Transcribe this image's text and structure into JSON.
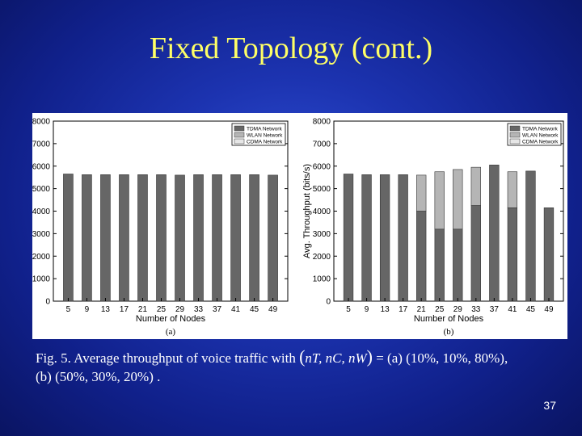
{
  "slide": {
    "title": "Fixed Topology (cont.)",
    "page_number": "37"
  },
  "caption": {
    "line1_prefix": "Fig. 5. Average throughput of voice traffic with",
    "math_n_t": "nT",
    "math_n_c": "nC",
    "math_n_w": "nW",
    "line1_suffix": "= (a) (10%, 10%, 80%),",
    "line2": "(b) (50%, 30%, 20%) ."
  },
  "colors": {
    "background": "#1c33b0",
    "title": "#ffff66",
    "tdma": "#666666",
    "wlan": "#b5b5b5",
    "cdma": "#e6e6e6"
  },
  "chart_data": [
    {
      "type": "bar",
      "stacked": true,
      "panel_label": "(a)",
      "xlabel": "Number of Nodes",
      "ylabel": "Avg. Throughput (bits/s)",
      "ylim": [
        0,
        8000
      ],
      "yticks": [
        0,
        1000,
        2000,
        3000,
        4000,
        5000,
        6000,
        7000,
        8000
      ],
      "categories": [
        "5",
        "9",
        "13",
        "17",
        "21",
        "25",
        "29",
        "33",
        "37",
        "41",
        "45",
        "49"
      ],
      "legend": {
        "placement": "top-right",
        "entries": [
          "TDMA Network",
          "WLAN Network",
          "CDMA Network"
        ]
      },
      "series": [
        {
          "name": "TDMA Network",
          "values": [
            5650,
            5620,
            5620,
            5620,
            5620,
            5620,
            5600,
            5620,
            5620,
            5620,
            5620,
            5600
          ]
        },
        {
          "name": "WLAN Network",
          "values": [
            0,
            0,
            0,
            0,
            0,
            0,
            0,
            0,
            0,
            0,
            0,
            0
          ]
        },
        {
          "name": "CDMA Network",
          "values": [
            0,
            0,
            0,
            0,
            0,
            0,
            0,
            0,
            0,
            0,
            0,
            0
          ]
        }
      ]
    },
    {
      "type": "bar",
      "stacked": true,
      "panel_label": "(b)",
      "xlabel": "Number of Nodes",
      "ylabel": "Avg. Throughput (bits/s)",
      "ylim": [
        0,
        8000
      ],
      "yticks": [
        0,
        1000,
        2000,
        3000,
        4000,
        5000,
        6000,
        7000,
        8000
      ],
      "categories": [
        "5",
        "9",
        "13",
        "17",
        "21",
        "25",
        "29",
        "33",
        "37",
        "41",
        "45",
        "49"
      ],
      "legend": {
        "placement": "top-right",
        "entries": [
          "TDMA Network",
          "WLAN Network",
          "CDMA Network"
        ]
      },
      "series": [
        {
          "name": "TDMA Network",
          "values": [
            5650,
            5620,
            5620,
            5620,
            4000,
            3200,
            3200,
            4250,
            6050,
            4150,
            5780,
            4150
          ]
        },
        {
          "name": "WLAN Network",
          "values": [
            0,
            0,
            0,
            0,
            1600,
            2550,
            2650,
            1700,
            0,
            1600,
            0,
            0
          ]
        },
        {
          "name": "CDMA Network",
          "values": [
            0,
            0,
            0,
            0,
            0,
            0,
            0,
            0,
            0,
            0,
            0,
            0
          ]
        }
      ]
    }
  ]
}
